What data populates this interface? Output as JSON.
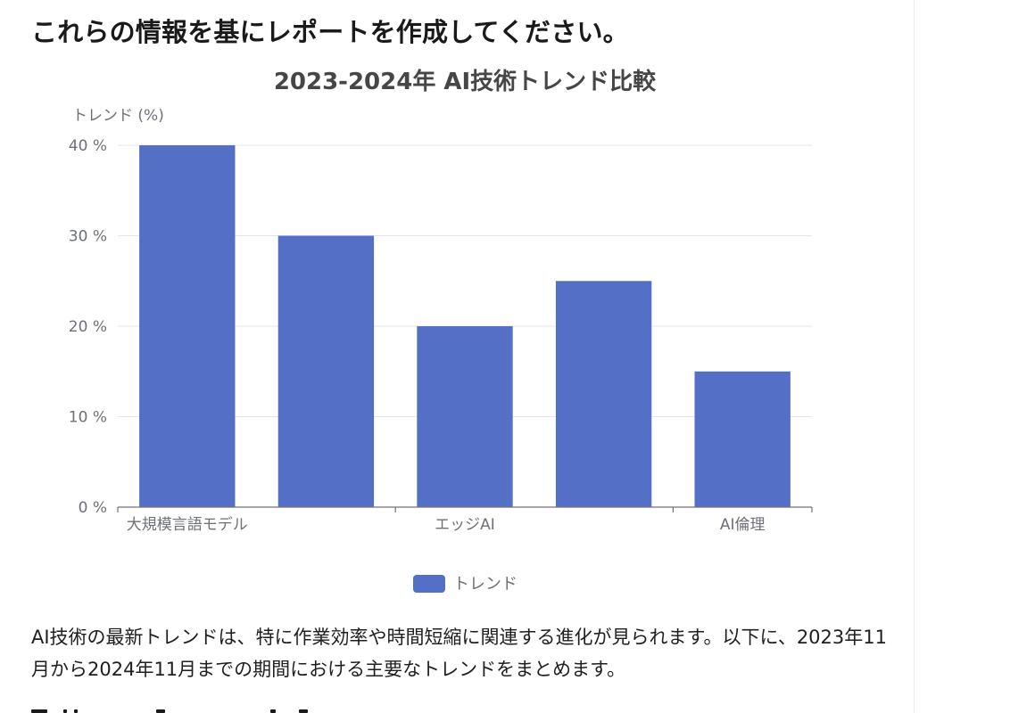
{
  "heading": "これらの情報を基にレポートを作成してください。",
  "chart_data": {
    "type": "bar",
    "title": "2023-2024年 AI技術トレンド比較",
    "ylabel": "トレンド (%)",
    "xlabel": "",
    "categories": [
      "大規模言語モデル",
      "",
      "エッジAI",
      "",
      "AI倫理"
    ],
    "series": [
      {
        "name": "トレンド",
        "values": [
          40,
          30,
          20,
          25,
          15
        ]
      }
    ],
    "ylim": [
      0,
      40
    ],
    "yticks": [
      "0 %",
      "10 %",
      "20 %",
      "30 %",
      "40 %"
    ],
    "grid": true,
    "legend": "bottom-center",
    "colors": {
      "bar": "#5470c6",
      "axis": "#6e7079",
      "grid": "#e0e6f1",
      "title": "#464646"
    }
  },
  "body_text": "AI技術の最新トレンドは、特に作業効率や時間短縮に関連する進化が見られます。以下に、2023年11月から2024年11月までの期間における主要なトレンドをまとめます。"
}
